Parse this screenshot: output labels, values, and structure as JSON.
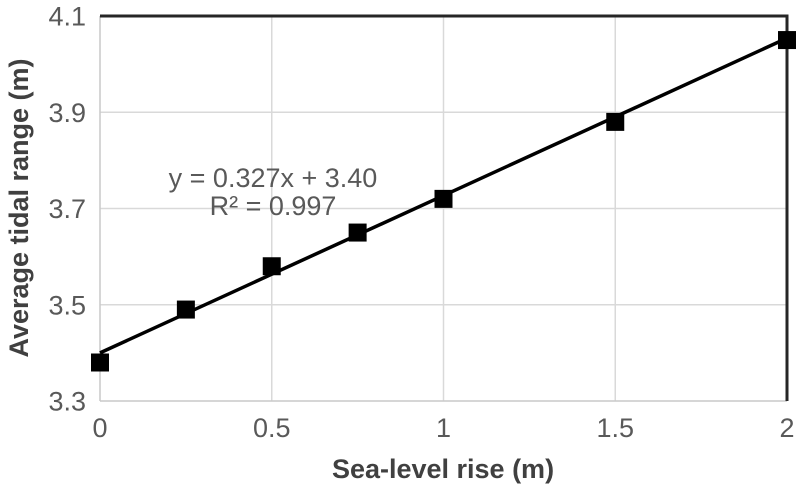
{
  "chart_data": {
    "type": "scatter",
    "title": "",
    "xlabel": "Sea-level rise (m)",
    "ylabel": "Average tidal range (m)",
    "xlim": [
      0,
      2
    ],
    "ylim": [
      3.3,
      4.1
    ],
    "x_ticks": [
      0,
      0.5,
      1,
      1.5,
      2
    ],
    "x_tick_labels": [
      "0",
      "0.5",
      "1",
      "1.5",
      "2"
    ],
    "y_ticks": [
      3.3,
      3.5,
      3.7,
      3.9,
      4.1
    ],
    "y_tick_labels": [
      "3.3",
      "3.5",
      "3.7",
      "3.9",
      "4.1"
    ],
    "grid": true,
    "legend": "none",
    "series": [
      {
        "name": "Average tidal range",
        "marker": "square",
        "points": [
          {
            "x": 0,
            "y": 3.38
          },
          {
            "x": 0.25,
            "y": 3.49
          },
          {
            "x": 0.5,
            "y": 3.58
          },
          {
            "x": 0.75,
            "y": 3.65
          },
          {
            "x": 1,
            "y": 3.72
          },
          {
            "x": 1.5,
            "y": 3.88
          },
          {
            "x": 2,
            "y": 4.05
          }
        ]
      }
    ],
    "trendline": {
      "slope": 0.327,
      "intercept": 3.4,
      "equation_label": "y = 0.327x + 3.40",
      "r_squared_label": "R² = 0.997"
    },
    "colors": {
      "marker": "#000000",
      "trendline": "#000000",
      "gridline": "#d9d9d9",
      "axis_line": "#c9c9c9",
      "plot_border": "#262626",
      "tick_label": "#595959",
      "axis_title": "#404040",
      "equation_text": "#595959",
      "background": "#ffffff"
    }
  }
}
